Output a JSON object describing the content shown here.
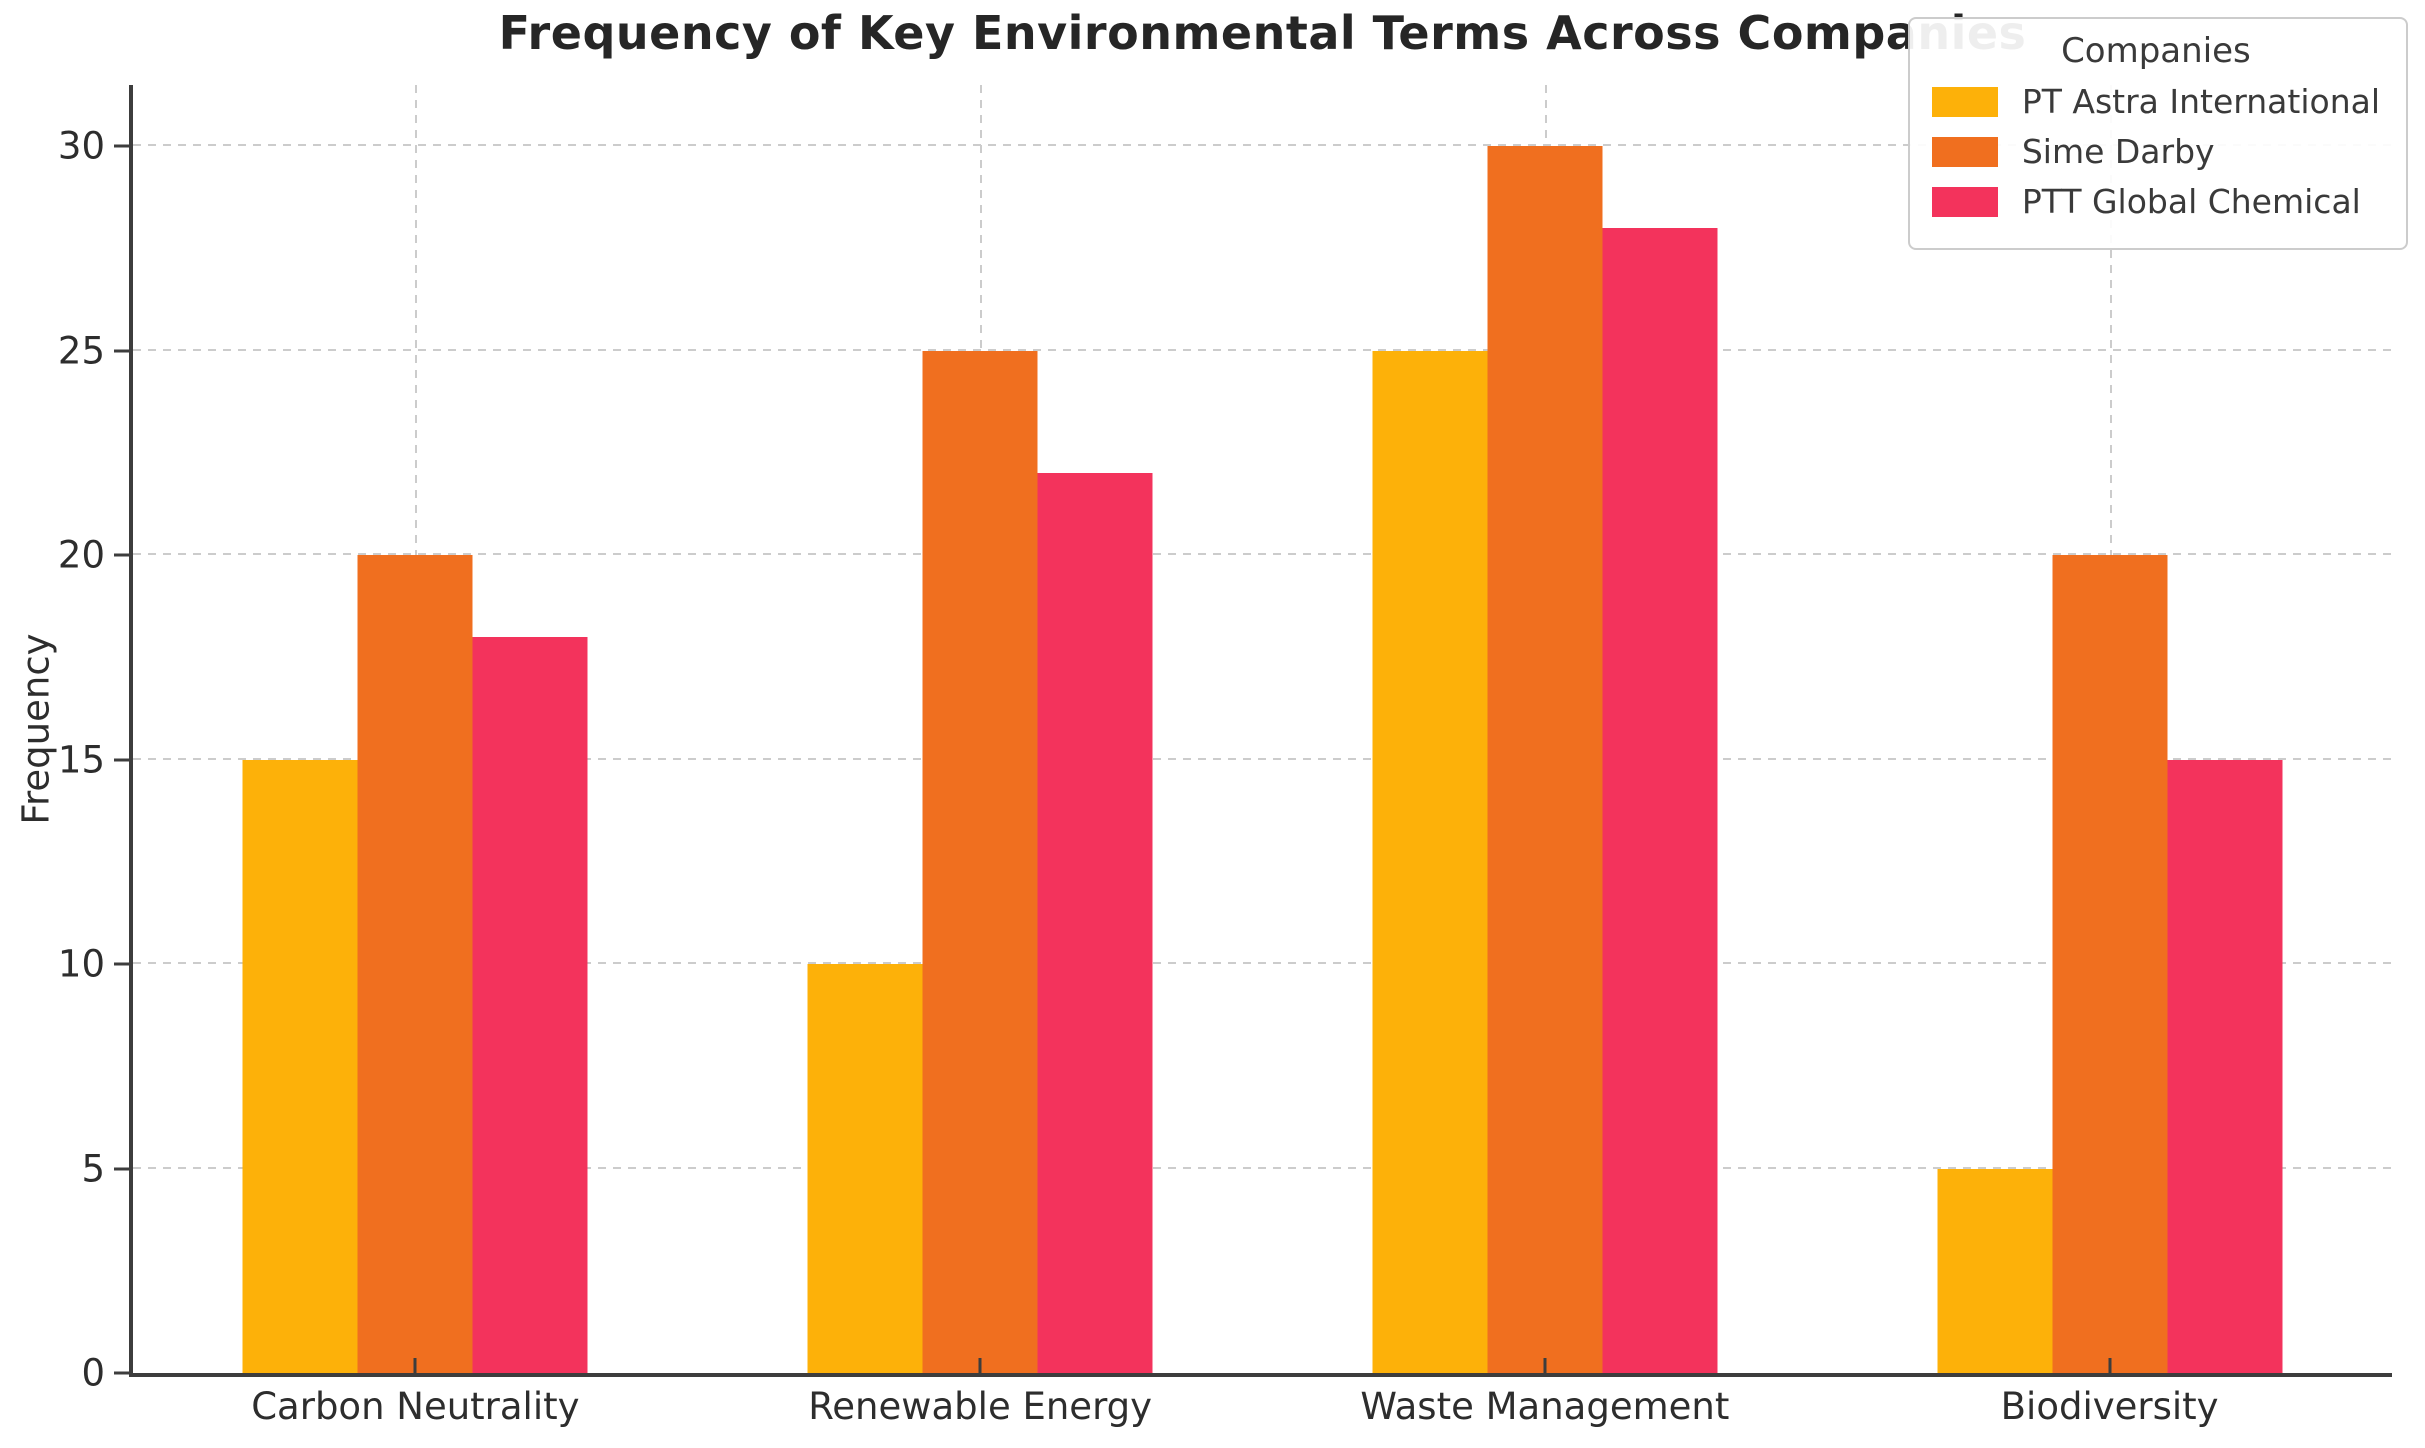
{
  "chart_data": {
    "type": "bar",
    "title": "Frequency of Key Environmental Terms Across Companies",
    "xlabel": "",
    "ylabel": "Frequency",
    "categories": [
      "Carbon Neutrality",
      "Renewable Energy",
      "Waste Management",
      "Biodiversity"
    ],
    "series": [
      {
        "name": "PT Astra International",
        "color": "#FDB109",
        "values": [
          15,
          10,
          25,
          5
        ]
      },
      {
        "name": "Sime Darby",
        "color": "#F06F1F",
        "values": [
          20,
          25,
          30,
          20
        ]
      },
      {
        "name": "PTT Global Chemical",
        "color": "#F3335C",
        "values": [
          18,
          22,
          28,
          15
        ]
      }
    ],
    "legend": {
      "title": "Companies",
      "position": "upper-right"
    },
    "yticks": [
      0,
      5,
      10,
      15,
      20,
      25,
      30
    ],
    "ylim": [
      0,
      31.5
    ],
    "grid": {
      "style": "dashed",
      "color": "#cccccc",
      "axes": "both"
    }
  },
  "colors": {
    "background": "#ffffff",
    "spine": "#3d3d3d",
    "title_text": "#262626",
    "tick_text": "#2d2d2d",
    "legend_text": "#3a3a3a",
    "legend_border": "#cccccc"
  }
}
